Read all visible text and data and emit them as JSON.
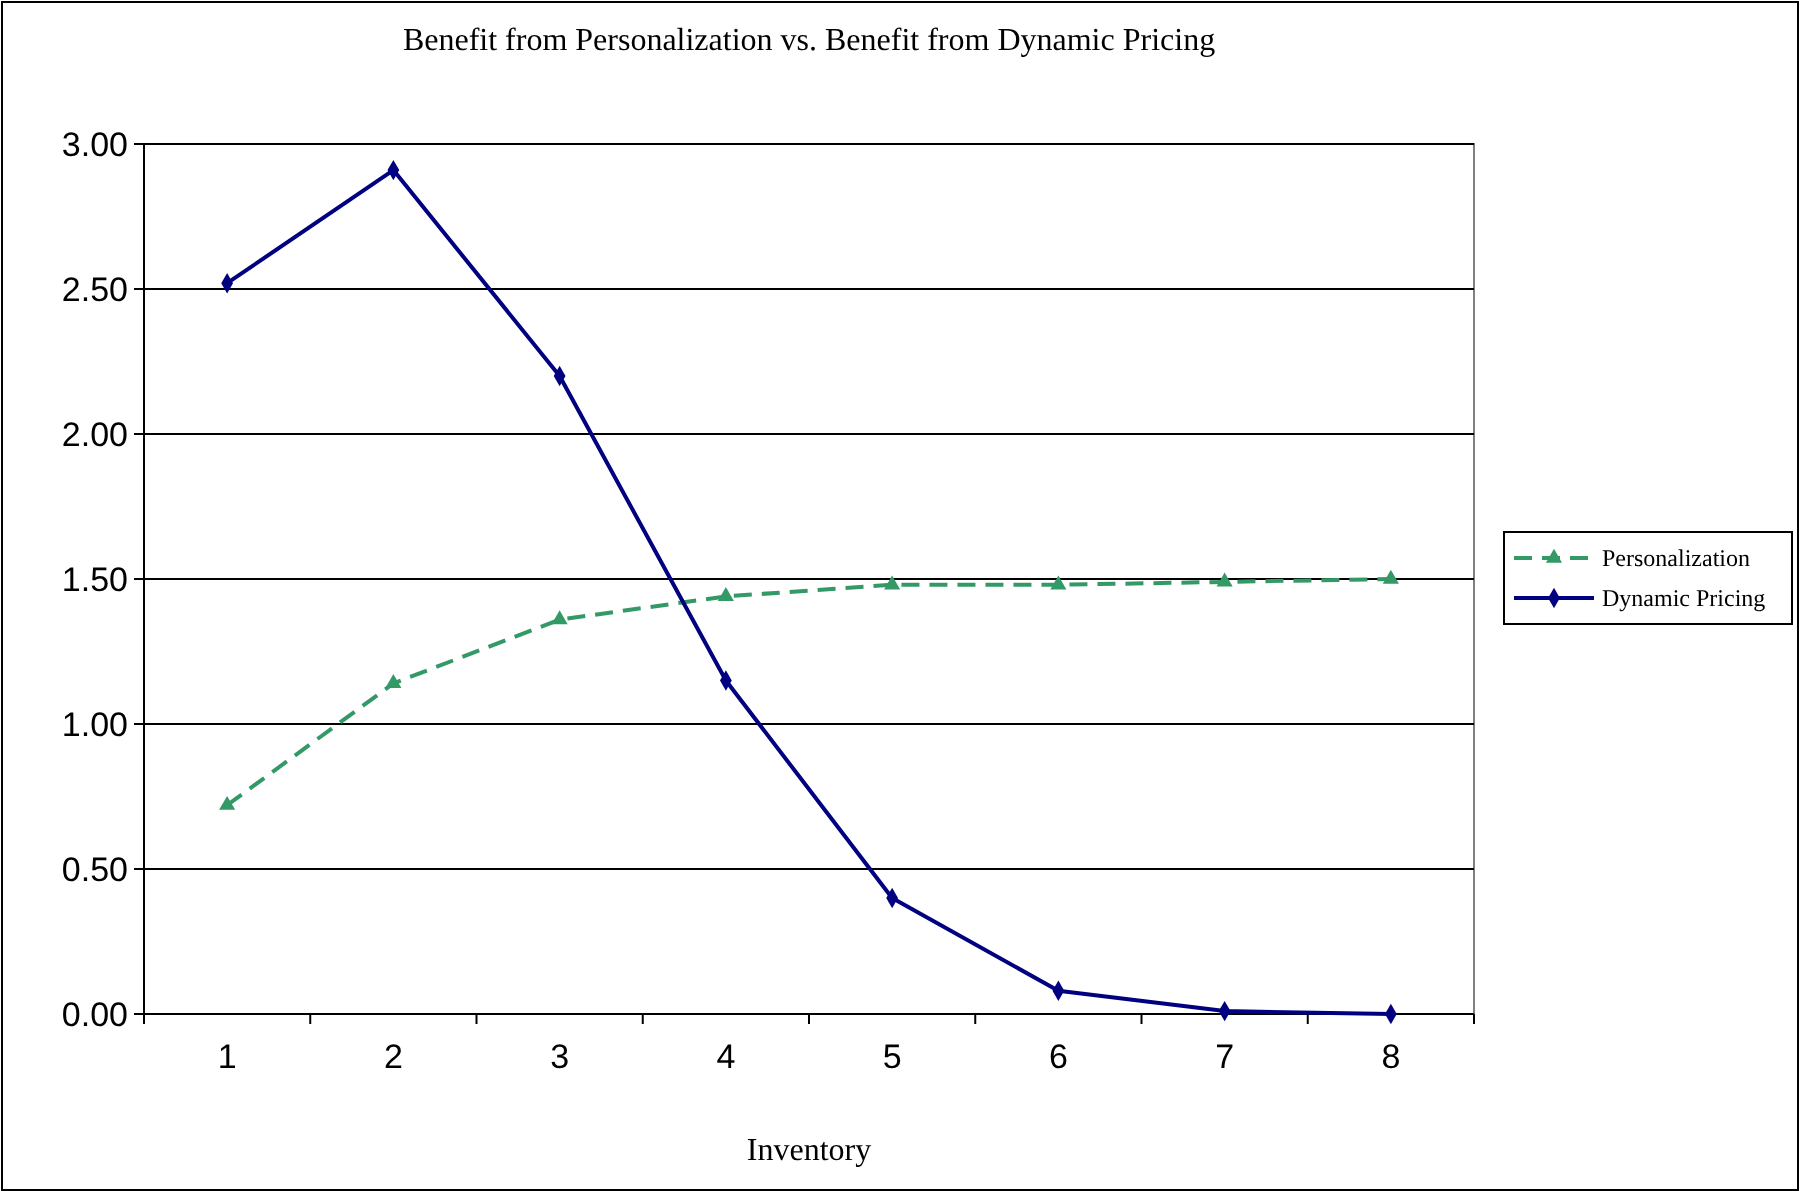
{
  "chart_data": {
    "type": "line",
    "title": "Benefit from Personalization vs. Benefit from Dynamic Pricing",
    "xlabel": "Inventory",
    "categories": [
      "1",
      "2",
      "3",
      "4",
      "5",
      "6",
      "7",
      "8"
    ],
    "series": [
      {
        "name": "Personalization",
        "color": "#339966",
        "marker": "triangle",
        "line_style": "dashed",
        "values": [
          0.72,
          1.14,
          1.36,
          1.44,
          1.48,
          1.48,
          1.49,
          1.5
        ]
      },
      {
        "name": "Dynamic Pricing",
        "color": "#000080",
        "marker": "diamond",
        "line_style": "solid",
        "values": [
          2.52,
          2.91,
          2.2,
          1.15,
          0.4,
          0.08,
          0.01,
          0.0
        ]
      }
    ],
    "ylim": [
      0,
      3
    ],
    "yticks": [
      {
        "value": 0,
        "label": "0.00"
      },
      {
        "value": 0.5,
        "label": "0.50"
      },
      {
        "value": 1,
        "label": "1.00"
      },
      {
        "value": 1.5,
        "label": "1.50"
      },
      {
        "value": 2,
        "label": "2.00"
      },
      {
        "value": 2.5,
        "label": "2.50"
      },
      {
        "value": 3,
        "label": "3.00"
      }
    ],
    "grid": "y",
    "legend": "right"
  }
}
